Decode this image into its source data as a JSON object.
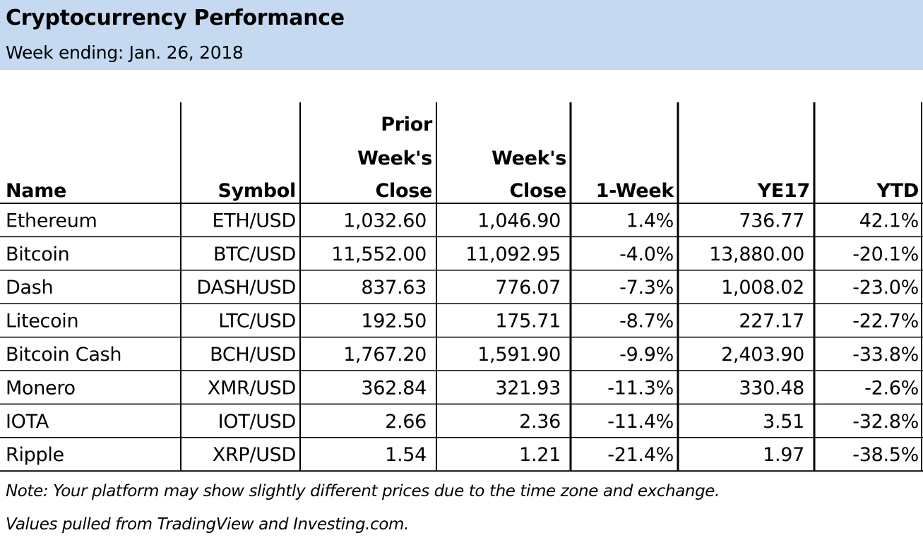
{
  "title": "Cryptocurrency Performance",
  "subtitle": "Week ending: Jan. 26, 2018",
  "chart_data": {
    "type": "table",
    "columns": [
      {
        "key": "name",
        "label_lines": [
          "Name"
        ]
      },
      {
        "key": "symbol",
        "label_lines": [
          "Symbol"
        ]
      },
      {
        "key": "prior_close",
        "label_lines": [
          "Prior",
          "Week's",
          "Close"
        ]
      },
      {
        "key": "close",
        "label_lines": [
          "Week's",
          "Close"
        ]
      },
      {
        "key": "one_week",
        "label_lines": [
          "1-Week"
        ]
      },
      {
        "key": "ye17",
        "label_lines": [
          "YE17"
        ]
      },
      {
        "key": "ytd",
        "label_lines": [
          "YTD"
        ]
      }
    ],
    "rows": [
      [
        "Ethereum",
        "ETH/USD",
        "1,032.60",
        "1,046.90",
        "1.4%",
        "736.77",
        "42.1%"
      ],
      [
        "Bitcoin",
        "BTC/USD",
        "11,552.00",
        "11,092.95",
        "-4.0%",
        "13,880.00",
        "-20.1%"
      ],
      [
        "Dash",
        "DASH/USD",
        "837.63",
        "776.07",
        "-7.3%",
        "1,008.02",
        "-23.0%"
      ],
      [
        "Litecoin",
        "LTC/USD",
        "192.50",
        "175.71",
        "-8.7%",
        "227.17",
        "-22.7%"
      ],
      [
        "Bitcoin Cash",
        "BCH/USD",
        "1,767.20",
        "1,591.90",
        "-9.9%",
        "2,403.90",
        "-33.8%"
      ],
      [
        "Monero",
        "XMR/USD",
        "362.84",
        "321.93",
        "-11.3%",
        "330.48",
        "-2.6%"
      ],
      [
        "IOTA",
        "IOT/USD",
        "2.66",
        "2.36",
        "-11.4%",
        "3.51",
        "-32.8%"
      ],
      [
        "Ripple",
        "XRP/USD",
        "1.54",
        "1.21",
        "-21.4%",
        "1.97",
        "-38.5%"
      ]
    ]
  },
  "notes": {
    "line1": "Note: Your platform may show slightly different prices due to the  time zone and exchange.",
    "line2": "Values pulled from TradingView and Investing.com."
  }
}
